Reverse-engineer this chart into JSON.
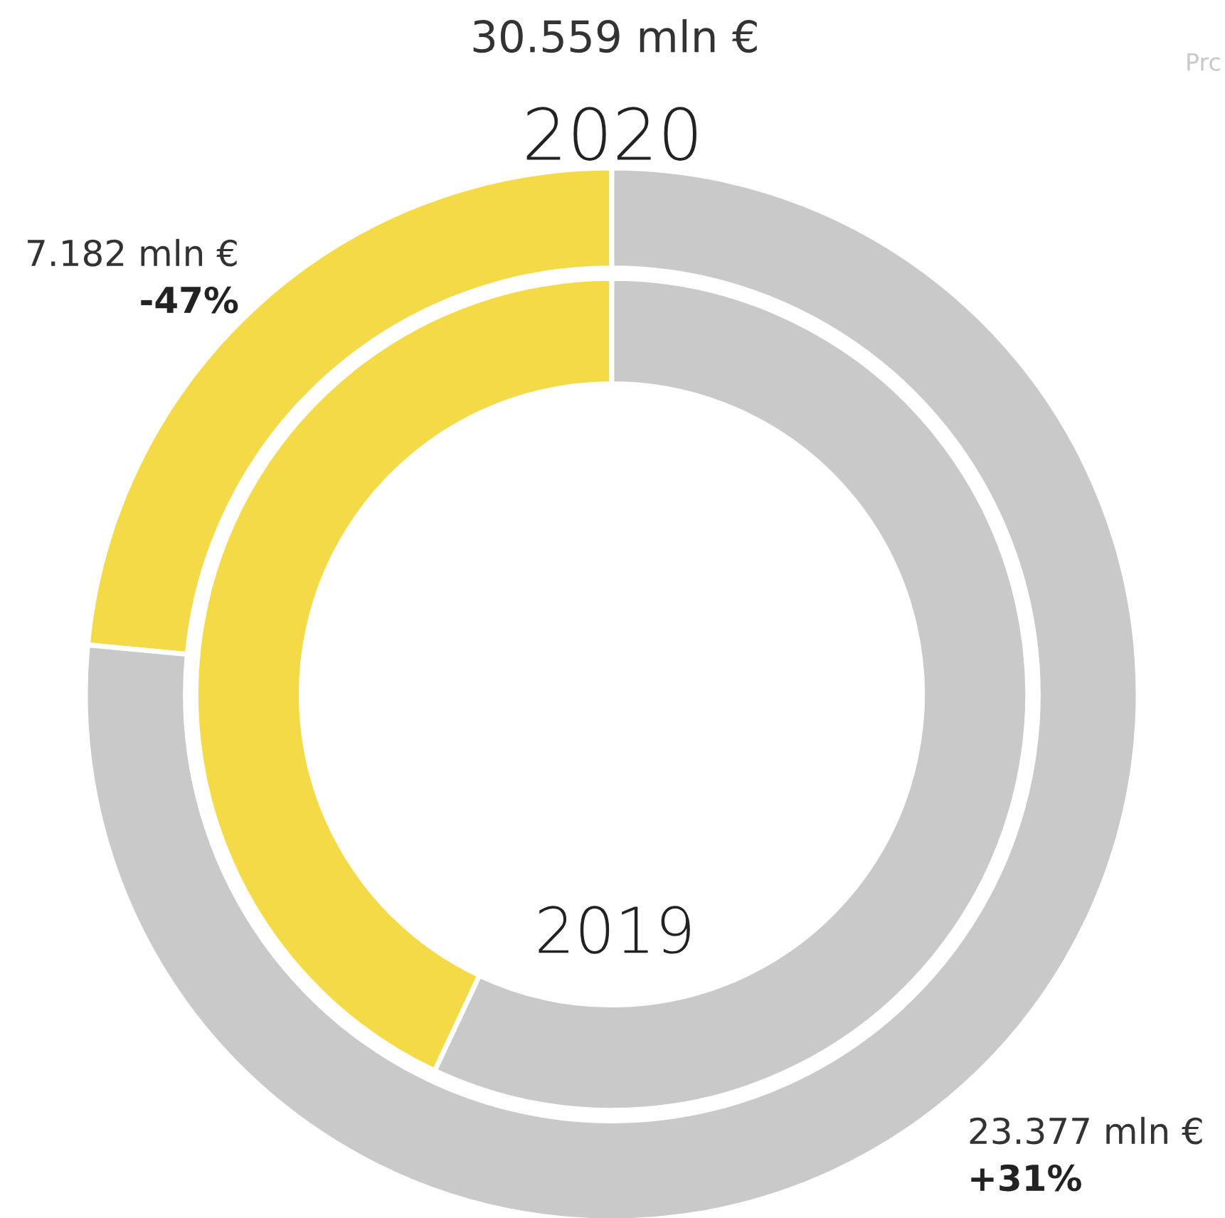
{
  "chart_data": {
    "type": "donut",
    "subtitle": "30.559 mln €",
    "categories": [
      null,
      null
    ],
    "series": [
      {
        "name": "2020",
        "values": [
          7.182,
          23.377
        ],
        "colors": [
          "#f5da48",
          "#c8c9c8"
        ],
        "value_labels": [
          "7.182 mln €",
          "23.377 mln €"
        ]
      },
      {
        "name": "2019",
        "values": [
          43,
          57
        ],
        "colors": [
          "#f5da48",
          "#c8c9c8"
        ]
      }
    ],
    "annotations": [
      "-47%",
      "+31%",
      "Prc"
    ]
  }
}
